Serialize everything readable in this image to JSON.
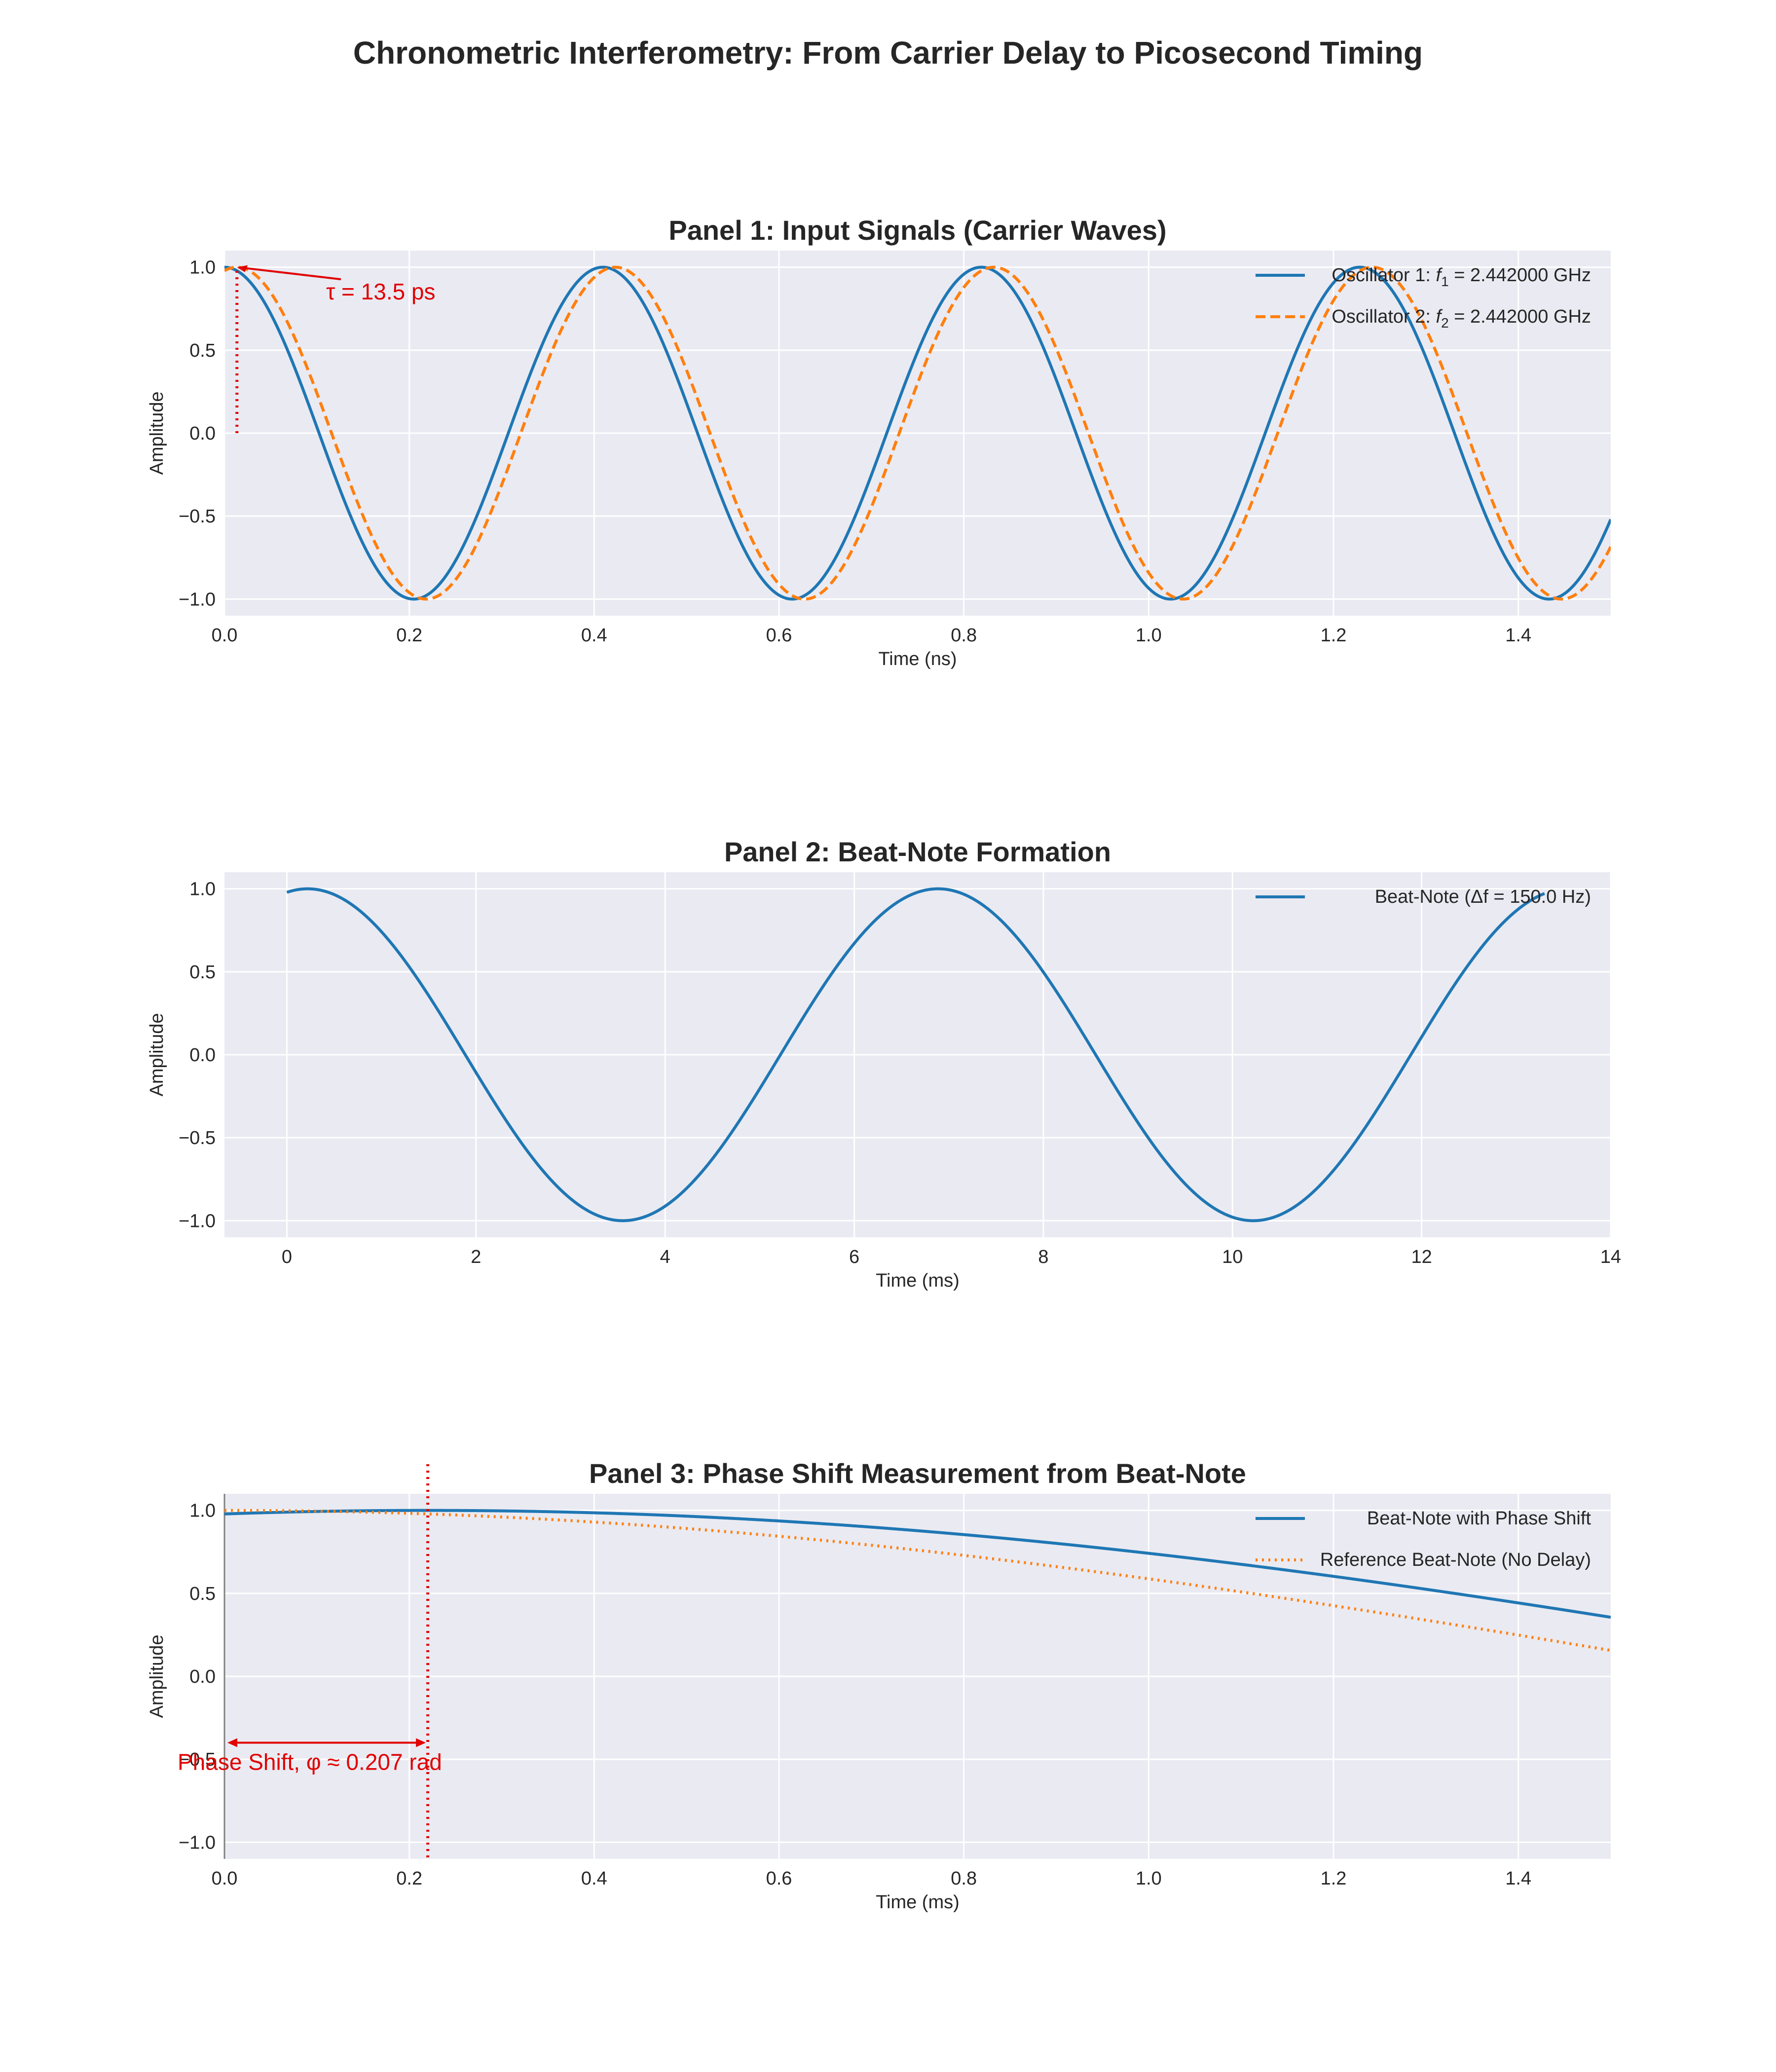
{
  "figure": {
    "suptitle": "Chronometric Interferometry: From Carrier Delay to Picosecond Timing"
  },
  "colors": {
    "background_axes": "#eaeaf2",
    "grid": "#ffffff",
    "series_blue": "#1f77b4",
    "series_orange": "#ff7f0e",
    "annotation_red": "#e00000"
  },
  "chart_data": [
    {
      "type": "line",
      "title": "Panel 1: Input Signals (Carrier Waves)",
      "xlabel": "Time (ns)",
      "ylabel": "Amplitude",
      "xlim": [
        0,
        1.5
      ],
      "ylim": [
        -1.1,
        1.1
      ],
      "xticks": [
        "0.0",
        "0.2",
        "0.4",
        "0.6",
        "0.8",
        "1.0",
        "1.2",
        "1.4"
      ],
      "yticks": [
        "1.0",
        "0.5",
        "0.0",
        "−0.5",
        "−1.0"
      ],
      "grid": true,
      "legend_position": "top-right",
      "series": [
        {
          "name_prefix": "Oscillator 1: ",
          "name_var": "f",
          "name_sub": "1",
          "name_suffix": " = 2.442000 GHz",
          "function": "cos(2*pi*f*t)",
          "frequency_GHz": 2.442,
          "delay_ns": 0,
          "style": "solid"
        },
        {
          "name_prefix": "Oscillator 2: ",
          "name_var": "f",
          "name_sub": "2",
          "name_suffix": " = 2.442000 GHz",
          "function": "cos(2*pi*f*(t - tau))",
          "frequency_GHz": 2.442,
          "delay_ns": 0.0135,
          "style": "dashed"
        }
      ],
      "annotation": {
        "text": "τ = 13.5 ps",
        "point": [
          0.0135,
          1.0
        ],
        "text_at": [
          0.11,
          0.85
        ],
        "vline_x": 0.0135,
        "vline_range": [
          0,
          1
        ]
      }
    },
    {
      "type": "line",
      "title": "Panel 2: Beat-Note Formation",
      "xlabel": "Time (ms)",
      "ylabel": "Amplitude",
      "xlim": [
        -0.66,
        14
      ],
      "ylim": [
        -1.1,
        1.1
      ],
      "xticks": [
        "0",
        "2",
        "4",
        "6",
        "8",
        "10",
        "12",
        "14"
      ],
      "yticks": [
        "1.0",
        "0.5",
        "0.0",
        "−0.5",
        "−1.0"
      ],
      "grid": true,
      "legend_position": "top-right",
      "series": [
        {
          "name": "Beat-Note (Δf = 150.0 Hz)",
          "function": "cos(2*pi*df*t - phi)",
          "df_Hz": 150.0,
          "phi_rad": 0.207,
          "t_range_ms": [
            0,
            13.3
          ],
          "style": "solid"
        }
      ]
    },
    {
      "type": "line",
      "title": "Panel 3: Phase Shift Measurement from Beat-Note",
      "xlabel": "Time (ms)",
      "ylabel": "Amplitude",
      "xlim": [
        0,
        1.5
      ],
      "ylim": [
        -1.1,
        1.1
      ],
      "xticks": [
        "0.0",
        "0.2",
        "0.4",
        "0.6",
        "0.8",
        "1.0",
        "1.2",
        "1.4"
      ],
      "yticks": [
        "1.0",
        "0.5",
        "0.0",
        "−0.5",
        "−1.0"
      ],
      "grid": true,
      "legend_position": "top-right",
      "series": [
        {
          "name": "Beat-Note with Phase Shift",
          "function": "cos(2*pi*df*t - phi)",
          "df_Hz": 150.0,
          "phi_rad": 0.207,
          "style": "solid"
        },
        {
          "name": "Reference Beat-Note (No Delay)",
          "function": "cos(2*pi*df*t)",
          "df_Hz": 150.0,
          "phi_rad": 0,
          "style": "dotted"
        }
      ],
      "annotation": {
        "text": "Phase Shift, φ ≈ 0.207 rad",
        "vline_x": 0.22,
        "arrow_from_x": 0.0,
        "arrow_to_x": 0.22,
        "arrow_y": -0.4
      }
    }
  ]
}
